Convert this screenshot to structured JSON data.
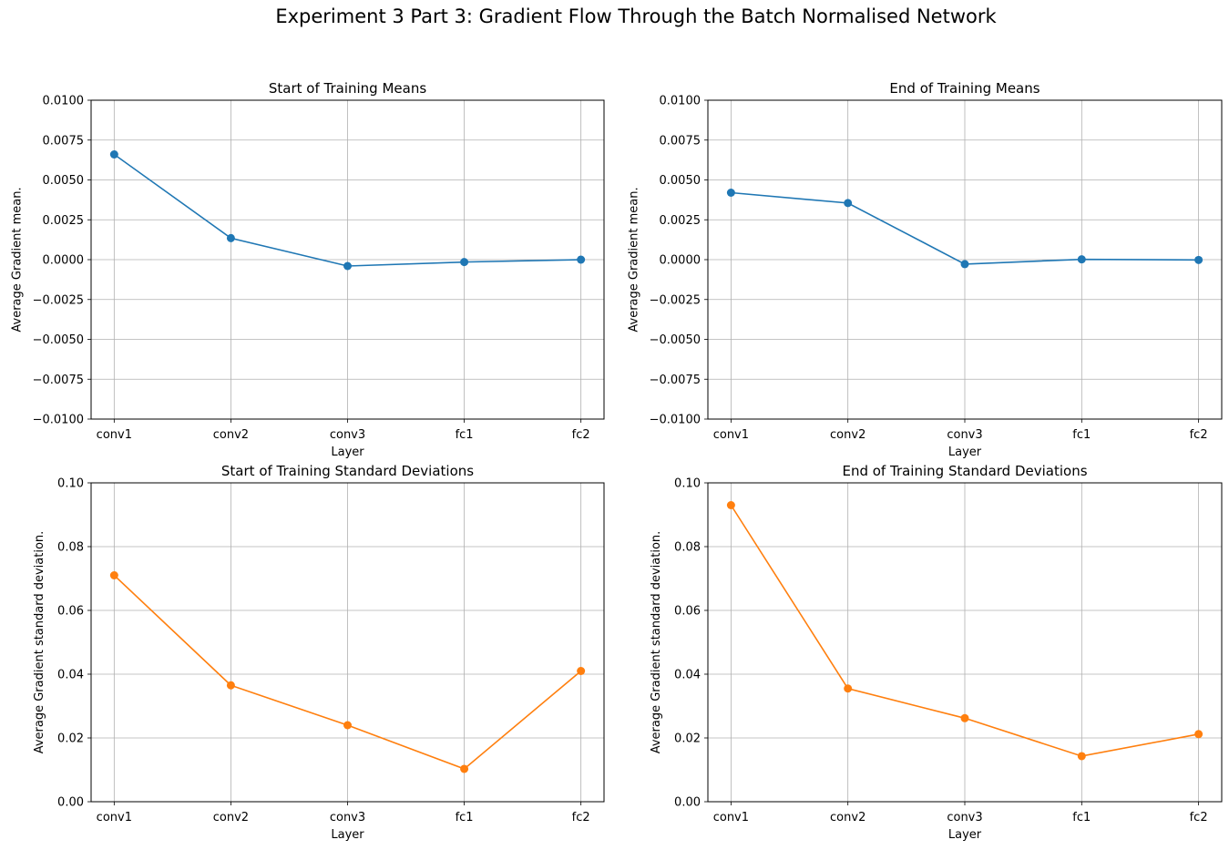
{
  "figure": {
    "suptitle": "Experiment 3 Part 3: Gradient Flow Through the Batch Normalised Network"
  },
  "chart_data": [
    {
      "type": "line",
      "title": "Start of Training Means",
      "xlabel": "Layer",
      "ylabel": "Average Gradient mean.",
      "categories": [
        "conv1",
        "conv2",
        "conv3",
        "fc1",
        "fc2"
      ],
      "series": [
        {
          "values": [
            0.0066,
            0.00135,
            -0.0004,
            -0.00015,
            0.0
          ],
          "color": "#1f77b4"
        }
      ],
      "ylim": [
        -0.01,
        0.01
      ],
      "yticks": [
        -0.01,
        -0.0075,
        -0.005,
        -0.0025,
        0.0,
        0.0025,
        0.005,
        0.0075,
        0.01
      ],
      "ytick_labels": [
        "−0.0100",
        "−0.0075",
        "−0.0050",
        "−0.0025",
        "0.0000",
        "0.0025",
        "0.0050",
        "0.0075",
        "0.0100"
      ],
      "grid": true
    },
    {
      "type": "line",
      "title": "End of Training Means",
      "xlabel": "Layer",
      "ylabel": "Average Gradient mean.",
      "categories": [
        "conv1",
        "conv2",
        "conv3",
        "fc1",
        "fc2"
      ],
      "series": [
        {
          "values": [
            0.0042,
            0.00355,
            -0.00028,
            2e-05,
            -2e-05
          ],
          "color": "#1f77b4"
        }
      ],
      "ylim": [
        -0.01,
        0.01
      ],
      "yticks": [
        -0.01,
        -0.0075,
        -0.005,
        -0.0025,
        0.0,
        0.0025,
        0.005,
        0.0075,
        0.01
      ],
      "ytick_labels": [
        "−0.0100",
        "−0.0075",
        "−0.0050",
        "−0.0025",
        "0.0000",
        "0.0025",
        "0.0050",
        "0.0075",
        "0.0100"
      ],
      "grid": true
    },
    {
      "type": "line",
      "title": "Start of Training Standard Deviations",
      "xlabel": "Layer",
      "ylabel": "Average Gradient standard deviation.",
      "categories": [
        "conv1",
        "conv2",
        "conv3",
        "fc1",
        "fc2"
      ],
      "series": [
        {
          "values": [
            0.071,
            0.0365,
            0.024,
            0.0103,
            0.041
          ],
          "color": "#ff7f0e"
        }
      ],
      "ylim": [
        0.0,
        0.1
      ],
      "yticks": [
        0.0,
        0.02,
        0.04,
        0.06,
        0.08,
        0.1
      ],
      "ytick_labels": [
        "0.00",
        "0.02",
        "0.04",
        "0.06",
        "0.08",
        "0.10"
      ],
      "grid": true
    },
    {
      "type": "line",
      "title": "End of Training Standard Deviations",
      "xlabel": "Layer",
      "ylabel": "Average Gradient standard deviation.",
      "categories": [
        "conv1",
        "conv2",
        "conv3",
        "fc1",
        "fc2"
      ],
      "series": [
        {
          "values": [
            0.093,
            0.0355,
            0.0262,
            0.0143,
            0.0212
          ],
          "color": "#ff7f0e"
        }
      ],
      "ylim": [
        0.0,
        0.1
      ],
      "yticks": [
        0.0,
        0.02,
        0.04,
        0.06,
        0.08,
        0.1
      ],
      "ytick_labels": [
        "0.00",
        "0.02",
        "0.04",
        "0.06",
        "0.08",
        "0.10"
      ],
      "grid": true
    }
  ]
}
